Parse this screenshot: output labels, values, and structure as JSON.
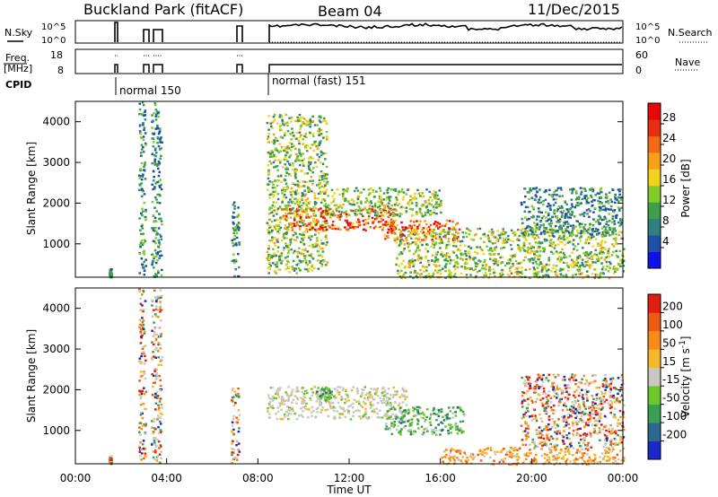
{
  "header": {
    "title": "Buckland Park (fitACF)",
    "beam": "Beam 04",
    "date": "11/Dec/2015"
  },
  "top_panels": {
    "nsky_label": "N.Sky",
    "nsearch_label": "N.Search",
    "noise_ticks": [
      "10^5",
      "10^0"
    ],
    "freq_label_1": "Freq.",
    "freq_label_2": "[MHz]",
    "freq_ticks": [
      "18",
      "8"
    ],
    "nave_label": "Nave",
    "nave_ticks": [
      "60",
      "0"
    ],
    "cpid_label": "CPID",
    "cpid_mode_1": "normal 150",
    "cpid_mode_2": "normal (fast) 151"
  },
  "chart_data": [
    {
      "type": "heatmap",
      "name": "power",
      "ylabel": "Slant Range [km]",
      "yticks": [
        "1000",
        "2000",
        "3000",
        "4000"
      ],
      "xlim": [
        0,
        24
      ],
      "ylim": [
        180,
        4500
      ],
      "colorbar": {
        "label": "Power [dB]",
        "ticks": [
          "4",
          "8",
          "12",
          "16",
          "20",
          "24",
          "28"
        ],
        "colors": [
          "#1010ee",
          "#1e50a8",
          "#2f7f83",
          "#3e9e4a",
          "#7fcc28",
          "#f3d21a",
          "#fa9f18",
          "#f06b12",
          "#e83010",
          "#e80808"
        ]
      },
      "echo_regions": [
        {
          "t0": 1.45,
          "t1": 1.55,
          "r0": 200,
          "r1": 400,
          "level": "weak"
        },
        {
          "t0": 2.75,
          "t1": 3.05,
          "r0": 200,
          "r1": 4500,
          "level": "weak"
        },
        {
          "t0": 3.3,
          "t1": 3.75,
          "r0": 200,
          "r1": 4500,
          "level": "weak"
        },
        {
          "t0": 6.8,
          "t1": 7.15,
          "r0": 200,
          "r1": 2100,
          "level": "weak"
        },
        {
          "t0": 8.35,
          "t1": 11,
          "r0": 300,
          "r1": 4200,
          "level": "moderate"
        },
        {
          "t0": 9,
          "t1": 14,
          "r0": 1350,
          "r1": 1900,
          "level": "strong"
        },
        {
          "t0": 13.5,
          "t1": 16.8,
          "r0": 1100,
          "r1": 1600,
          "level": "strong"
        },
        {
          "t0": 11,
          "t1": 16,
          "r0": 1700,
          "r1": 2400,
          "level": "moderate"
        },
        {
          "t0": 14,
          "t1": 24,
          "r0": 180,
          "r1": 1400,
          "level": "moderate"
        },
        {
          "t0": 19.5,
          "t1": 24,
          "r0": 1200,
          "r1": 2400,
          "level": "weak"
        }
      ]
    },
    {
      "type": "heatmap",
      "name": "velocity",
      "ylabel": "Slant Range [km]",
      "yticks": [
        "1000",
        "2000",
        "3000",
        "4000"
      ],
      "xlabel": "Time UT",
      "xticks": [
        "00:00",
        "04:00",
        "08:00",
        "12:00",
        "16:00",
        "20:00",
        "00:00"
      ],
      "xlim": [
        0,
        24
      ],
      "ylim": [
        180,
        4500
      ],
      "colorbar": {
        "label": "Velocity [m s^-1]",
        "ticks": [
          "200",
          "100",
          "50",
          "15",
          "-15",
          "-50",
          "-100",
          "-200"
        ],
        "colors": [
          "#1a28c8",
          "#2b6a8e",
          "#38a050",
          "#6cc828",
          "#c8c8c0",
          "#f5b82a",
          "#f98c18",
          "#ef5a14",
          "#e0200e"
        ]
      },
      "echo_regions": [
        {
          "t0": 1.45,
          "t1": 1.55,
          "r0": 200,
          "r1": 400,
          "level": "mixed"
        },
        {
          "t0": 2.75,
          "t1": 3.05,
          "r0": 200,
          "r1": 4500,
          "level": "mixed"
        },
        {
          "t0": 3.3,
          "t1": 3.75,
          "r0": 200,
          "r1": 4500,
          "level": "mixed"
        },
        {
          "t0": 6.8,
          "t1": 7.15,
          "r0": 200,
          "r1": 2100,
          "level": "mixed"
        },
        {
          "t0": 8.35,
          "t1": 14.5,
          "r0": 1300,
          "r1": 2100,
          "level": "near-zero"
        },
        {
          "t0": 10.5,
          "t1": 11.2,
          "r0": 1750,
          "r1": 2050,
          "level": "positive"
        },
        {
          "t0": 13.5,
          "t1": 17,
          "r0": 900,
          "r1": 1600,
          "level": "positive"
        },
        {
          "t0": 16,
          "t1": 24,
          "r0": 180,
          "r1": 600,
          "level": "negative"
        },
        {
          "t0": 19.5,
          "t1": 24,
          "r0": 600,
          "r1": 2400,
          "level": "mixed"
        }
      ]
    }
  ]
}
